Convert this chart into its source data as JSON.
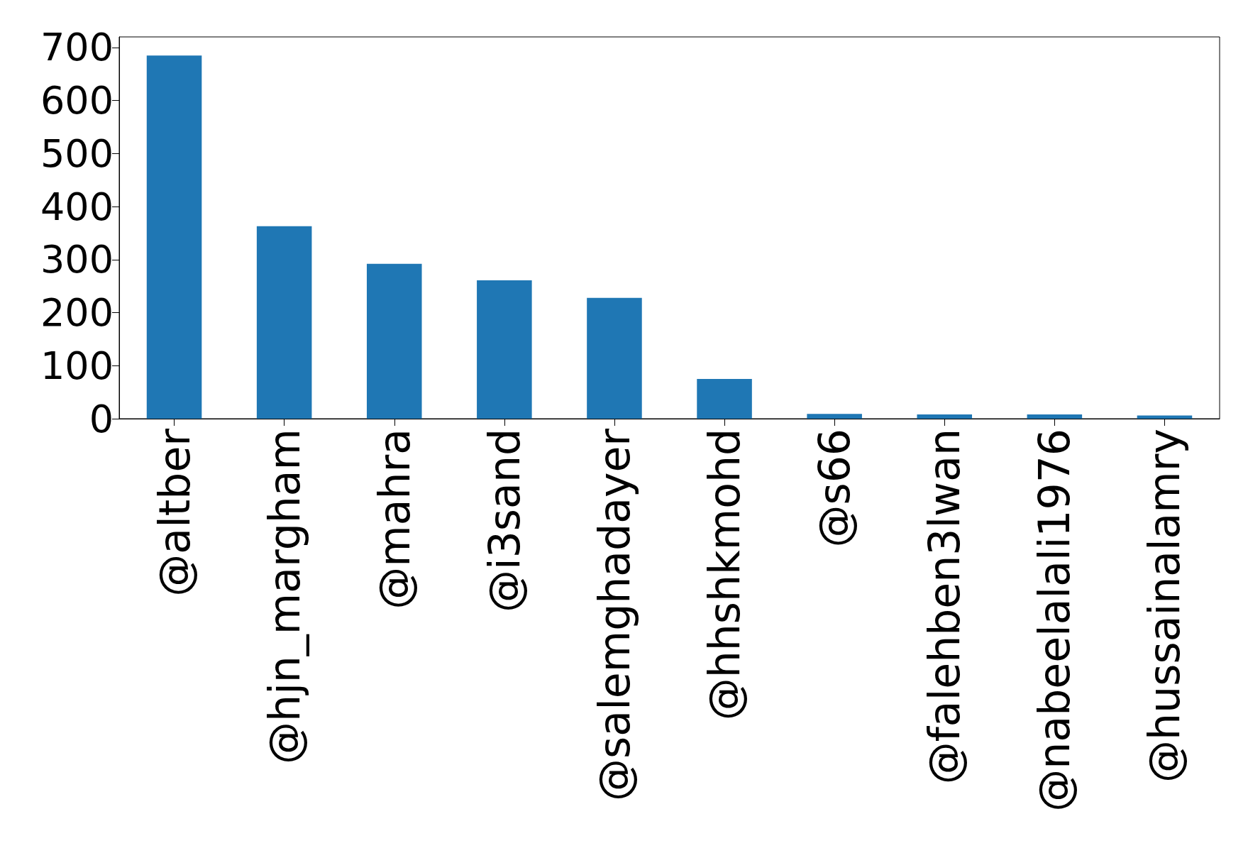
{
  "chart_data": {
    "type": "bar",
    "categories": [
      "@altber",
      "@hjn_margham",
      "@mahra",
      "@i3sand",
      "@salemghadayer",
      "@hhshkmohd",
      "@s66",
      "@falehben3lwan",
      "@nabeelalali1976",
      "@hussainalamry"
    ],
    "values": [
      685,
      363,
      292,
      261,
      228,
      75,
      9,
      8,
      8,
      6
    ],
    "color": "#1f77b4",
    "ylim": [
      0,
      720
    ],
    "yticks": [
      0,
      100,
      200,
      300,
      400,
      500,
      600,
      700
    ],
    "grid": false
  }
}
